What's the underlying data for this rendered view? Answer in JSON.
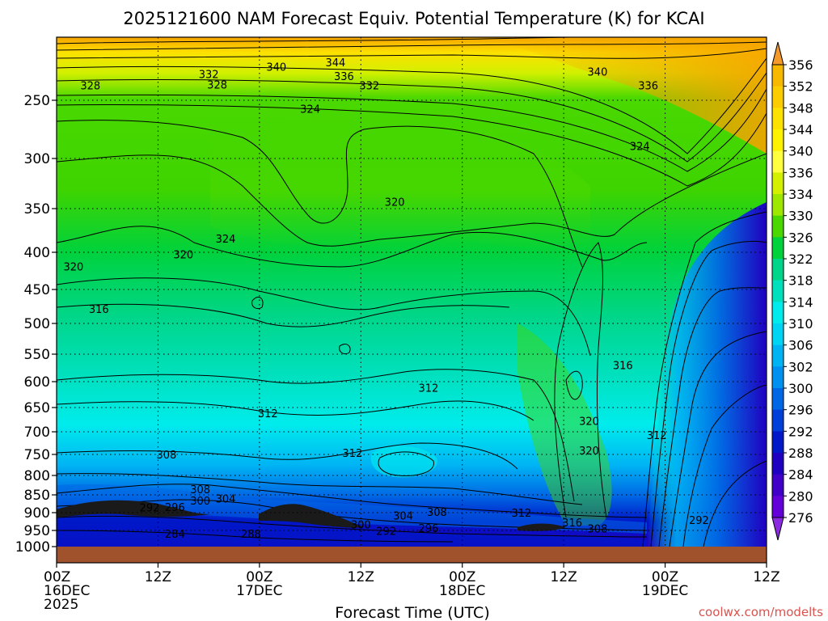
{
  "chart_data": {
    "type": "heatmap",
    "title": "2025121600 NAM Forecast Equiv. Potential Temperature (K) for KCAI",
    "xlabel": "Forecast Time (UTC)",
    "ylabel": "",
    "credit": "coolwx.com/modelts",
    "y_axis": {
      "scale": "pressure",
      "range": [
        1000,
        200
      ],
      "ticks": [
        250,
        300,
        350,
        400,
        450,
        500,
        550,
        600,
        650,
        700,
        750,
        800,
        850,
        900,
        950,
        1000
      ],
      "tick_labels": [
        "250",
        "300",
        "350",
        "400",
        "450",
        "500",
        "550",
        "600",
        "650",
        "700",
        "750",
        "800",
        "850",
        "900",
        "950",
        "1000"
      ]
    },
    "x_axis": {
      "range_hours": [
        0,
        84
      ],
      "ticks_hours": [
        0,
        12,
        24,
        36,
        48,
        60,
        72,
        84
      ],
      "tick_labels": [
        [
          "00Z",
          "16DEC",
          "2025"
        ],
        [
          "12Z"
        ],
        [
          "00Z",
          "17DEC"
        ],
        [
          "12Z"
        ],
        [
          "00Z",
          "18DEC"
        ],
        [
          "12Z"
        ],
        [
          "00Z",
          "19DEC"
        ],
        [
          "12Z"
        ]
      ]
    },
    "colorbar": {
      "levels": [
        "356",
        "352",
        "348",
        "344",
        "340",
        "336",
        "334",
        "330",
        "326",
        "322",
        "318",
        "314",
        "310",
        "306",
        "302",
        "300",
        "296",
        "292",
        "288",
        "284",
        "280",
        "276"
      ],
      "colors": [
        "#f5a300",
        "#f7b800",
        "#fbcd00",
        "#fde100",
        "#fff200",
        "#ffff40",
        "#d2f000",
        "#9ee800",
        "#4ad800",
        "#00d23c",
        "#00d68a",
        "#00e0bc",
        "#00ecec",
        "#00d4f4",
        "#00b4f4",
        "#0090f0",
        "#0068e4",
        "#0040d8",
        "#0018c8",
        "#2000c0",
        "#4000c8",
        "#6400d8"
      ],
      "top_arrow_color": "#f39a2a",
      "bottom_arrow_color": "#8a2be2"
    },
    "ground_color": "#a0522d",
    "contour_color": "#000000",
    "grid": "dotted horizontal lines at each pressure tick",
    "field_description": "Equivalent potential temperature time-height cross section; high values (340-356 K) aloft near 200 hPa, 320-330 K mid-levels, 300-316 K lower levels, 280-296 K near surface; sharp cold intrusion after 19DEC 00Z.",
    "contour_labels": [
      {
        "value": "344",
        "hour": 33,
        "pres": 218
      },
      {
        "value": "340",
        "hour": 26,
        "pres": 222
      },
      {
        "value": "340",
        "hour": 64,
        "pres": 226
      },
      {
        "value": "336",
        "hour": 34,
        "pres": 230
      },
      {
        "value": "336",
        "hour": 70,
        "pres": 238
      },
      {
        "value": "332",
        "hour": 18,
        "pres": 228
      },
      {
        "value": "332",
        "hour": 37,
        "pres": 238
      },
      {
        "value": "328",
        "hour": 4,
        "pres": 238
      },
      {
        "value": "328",
        "hour": 19,
        "pres": 237
      },
      {
        "value": "324",
        "hour": 30,
        "pres": 258
      },
      {
        "value": "324",
        "hour": 69,
        "pres": 290
      },
      {
        "value": "324",
        "hour": 20,
        "pres": 385
      },
      {
        "value": "320",
        "hour": 40,
        "pres": 344
      },
      {
        "value": "320",
        "hour": 15,
        "pres": 404
      },
      {
        "value": "320",
        "hour": 2,
        "pres": 420
      },
      {
        "value": "316",
        "hour": 5,
        "pres": 480
      },
      {
        "value": "316",
        "hour": 67,
        "pres": 571
      },
      {
        "value": "312",
        "hour": 44,
        "pres": 613
      },
      {
        "value": "312",
        "hour": 25,
        "pres": 663
      },
      {
        "value": "312",
        "hour": 35,
        "pres": 748
      },
      {
        "value": "312",
        "hour": 71,
        "pres": 709
      },
      {
        "value": "308",
        "hour": 13,
        "pres": 752
      },
      {
        "value": "320",
        "hour": 63,
        "pres": 679
      },
      {
        "value": "320",
        "hour": 63,
        "pres": 743
      },
      {
        "value": "308",
        "hour": 17,
        "pres": 837
      },
      {
        "value": "304",
        "hour": 20,
        "pres": 863
      },
      {
        "value": "300",
        "hour": 17,
        "pres": 868
      },
      {
        "value": "296",
        "hour": 14,
        "pres": 886
      },
      {
        "value": "292",
        "hour": 11,
        "pres": 888
      },
      {
        "value": "308",
        "hour": 45,
        "pres": 900
      },
      {
        "value": "304",
        "hour": 41,
        "pres": 910
      },
      {
        "value": "300",
        "hour": 36,
        "pres": 935
      },
      {
        "value": "296",
        "hour": 44,
        "pres": 946
      },
      {
        "value": "292",
        "hour": 39,
        "pres": 954
      },
      {
        "value": "288",
        "hour": 23,
        "pres": 963
      },
      {
        "value": "284",
        "hour": 14,
        "pres": 962
      },
      {
        "value": "312",
        "hour": 55,
        "pres": 902
      },
      {
        "value": "316",
        "hour": 61,
        "pres": 930
      },
      {
        "value": "308",
        "hour": 64,
        "pres": 947
      },
      {
        "value": "292",
        "hour": 76,
        "pres": 923
      }
    ]
  }
}
